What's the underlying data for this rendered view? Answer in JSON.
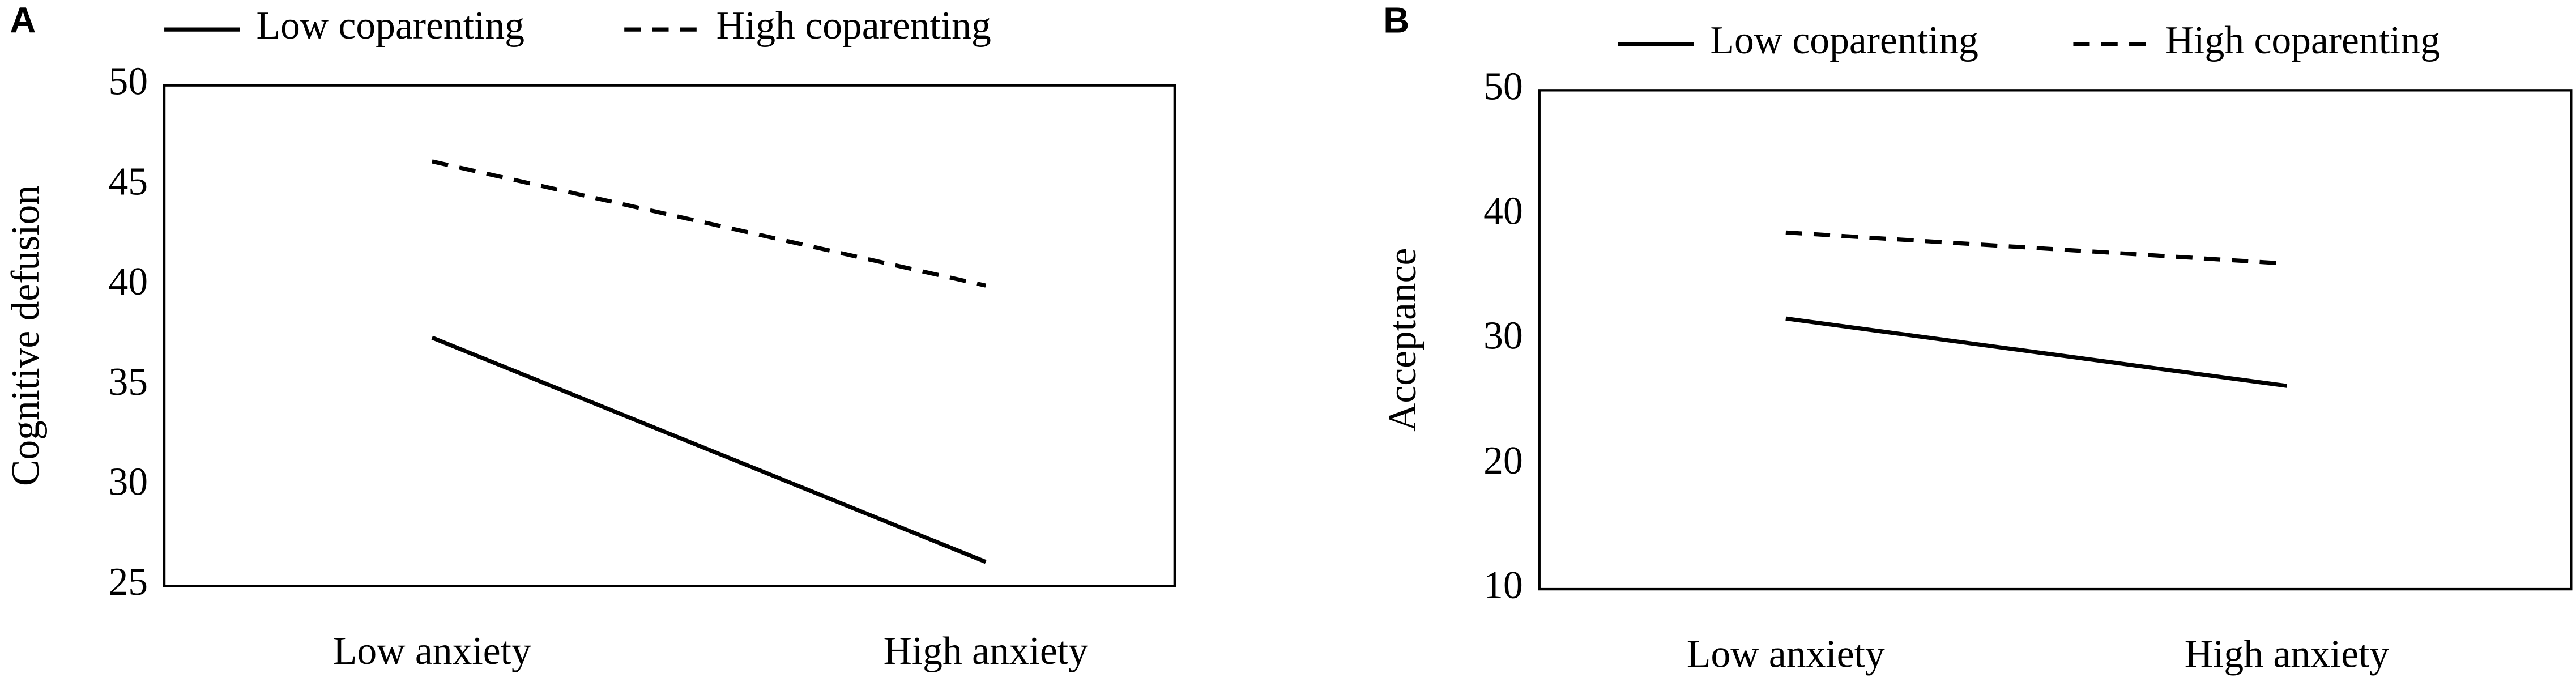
{
  "chart_data": [
    {
      "type": "line",
      "label": "A",
      "ylabel": "Cognitive defusion",
      "categories": [
        "Low anxiety",
        "High anxiety"
      ],
      "series": [
        {
          "name": "Low coparenting",
          "color": "#000000",
          "line_style": "solid",
          "values": [
            37.4,
            26.2
          ]
        },
        {
          "name": "High coparenting",
          "color": "#000000",
          "line_style": "dashed",
          "values": [
            46.2,
            40.0
          ]
        }
      ],
      "ylim": [
        25,
        50
      ],
      "yticks": [
        25,
        30,
        35,
        40,
        45,
        50
      ],
      "grid": false
    },
    {
      "type": "line",
      "label": "B",
      "ylabel": "Acceptance",
      "categories": [
        "Low anxiety",
        "High anxiety"
      ],
      "series": [
        {
          "name": "Low coparenting",
          "color": "#000000",
          "line_style": "solid",
          "values": [
            31.7,
            26.3
          ]
        },
        {
          "name": "High coparenting",
          "color": "#000000",
          "line_style": "dashed",
          "values": [
            38.6,
            36.1
          ]
        }
      ],
      "ylim": [
        10,
        50
      ],
      "yticks": [
        10,
        20,
        30,
        40,
        50
      ],
      "grid": false
    }
  ]
}
